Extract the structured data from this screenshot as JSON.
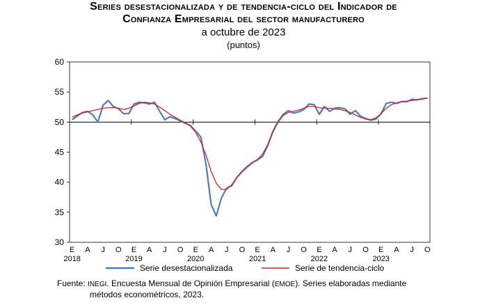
{
  "title_line1": "Series desestacionalizada y de tendencia-ciclo del Indicador de",
  "title_line2": "Confianza Empresarial del sector manufacturero",
  "subtitle": "a octubre de 2023",
  "unit": "(puntos)",
  "source": {
    "label": "Fuente:",
    "org": "INEGI",
    "text1": ". Encuesta Mensual de Opinión Empresarial (",
    "acronym": "EMOE",
    "text2": "). Series elaboradas mediante",
    "line2": "métodos econométricos, 2023."
  },
  "chart_data": {
    "type": "line",
    "title": "Series desestacionalizada y de tendencia-ciclo del Indicador de Confianza Empresarial del sector manufacturero",
    "ylim": [
      30,
      60
    ],
    "y_ticks": [
      30,
      35,
      40,
      45,
      50,
      55,
      60
    ],
    "reference_line": 50,
    "x_month_labels": [
      "E",
      "A",
      "J",
      "O",
      "E",
      "A",
      "J",
      "O",
      "E",
      "A",
      "J",
      "O",
      "E",
      "A",
      "J",
      "O",
      "E",
      "A",
      "J",
      "O",
      "E",
      "A",
      "J",
      "O"
    ],
    "x_year_labels": [
      "2018",
      "2019",
      "2020",
      "2021",
      "2022",
      "2023"
    ],
    "legend_position": "bottom",
    "x_start": "2018-01",
    "x_end": "2023-10",
    "series": [
      {
        "name": "Serie desestacionalizada",
        "color": "#4a7ebb",
        "values": [
          50.4,
          51.0,
          51.6,
          51.8,
          51.2,
          50.0,
          52.8,
          53.6,
          52.6,
          52.2,
          51.4,
          51.4,
          53.0,
          53.3,
          53.2,
          53.0,
          53.3,
          51.8,
          50.4,
          50.9,
          50.6,
          50.2,
          49.8,
          49.4,
          48.5,
          47.5,
          43.0,
          36.3,
          34.4,
          37.4,
          39.0,
          39.4,
          40.8,
          41.8,
          42.6,
          43.3,
          43.7,
          44.3,
          46.1,
          48.5,
          50.1,
          51.3,
          51.9,
          51.5,
          51.7,
          52.1,
          53.0,
          52.9,
          51.3,
          52.6,
          51.8,
          52.3,
          52.4,
          52.2,
          51.3,
          51.9,
          51.0,
          50.6,
          50.3,
          50.5,
          51.4,
          53.1,
          53.3,
          53.1,
          53.4,
          53.4,
          53.8,
          53.7,
          53.9,
          54.0
        ]
      },
      {
        "name": "Serie de tendencia-ciclo",
        "color": "#d81e2c",
        "values": [
          50.8,
          51.2,
          51.5,
          51.7,
          51.9,
          52.1,
          52.3,
          52.4,
          52.4,
          52.3,
          52.1,
          52.3,
          52.7,
          53.1,
          53.3,
          53.2,
          53.0,
          52.5,
          51.9,
          51.3,
          50.8,
          50.3,
          49.9,
          49.3,
          48.3,
          46.7,
          44.5,
          41.8,
          39.8,
          38.8,
          38.8,
          39.6,
          40.8,
          41.7,
          42.5,
          43.2,
          43.8,
          44.7,
          46.3,
          48.3,
          50.0,
          51.1,
          51.6,
          51.8,
          52.0,
          52.3,
          52.6,
          52.6,
          52.4,
          52.3,
          52.3,
          52.2,
          52.1,
          51.9,
          51.6,
          51.2,
          50.8,
          50.5,
          50.4,
          50.7,
          51.4,
          52.3,
          52.9,
          53.2,
          53.4,
          53.5,
          53.6,
          53.7,
          53.8,
          54.0
        ]
      }
    ]
  }
}
